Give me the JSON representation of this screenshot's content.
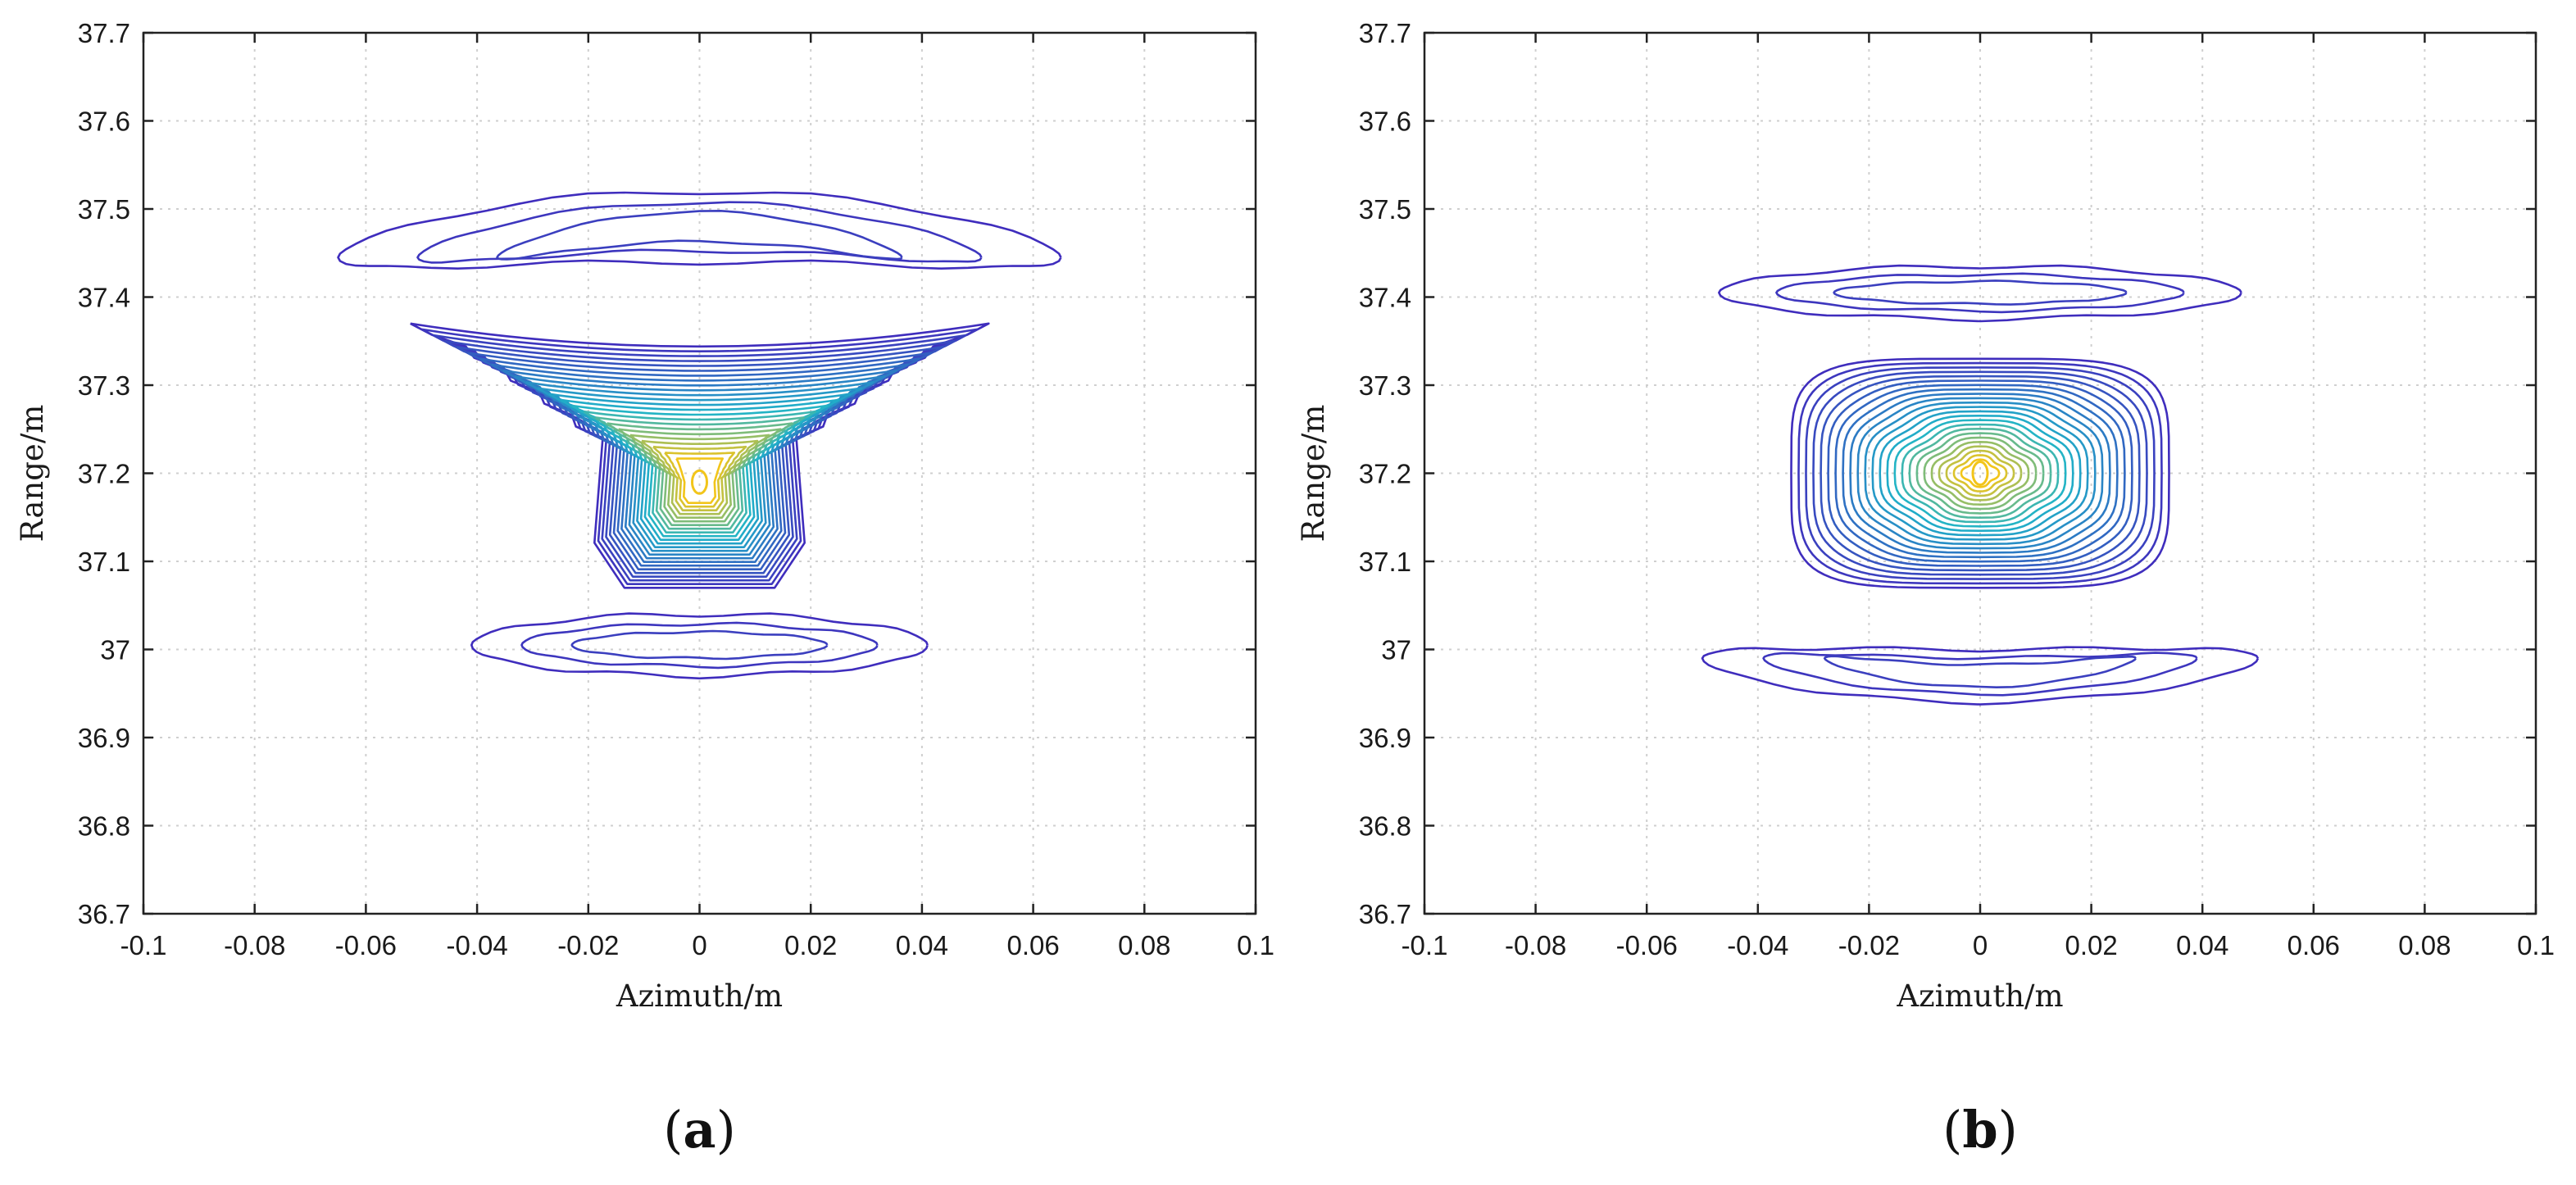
{
  "colors": {
    "low": "#3f2dbd",
    "mid": "#1fb4c9",
    "high": "#f2c51a",
    "axis": "#222222",
    "grid": "#cfcfcf"
  },
  "chart_data": [
    {
      "type": "contour",
      "panel_label": "(a)",
      "xlabel": "Azimuth/m",
      "ylabel": "Range/m",
      "xlim": [
        -0.1,
        0.1
      ],
      "ylim": [
        36.7,
        37.7
      ],
      "xticks": [
        "-0.1",
        "-0.08",
        "-0.06",
        "-0.04",
        "-0.02",
        "0",
        "0.02",
        "0.04",
        "0.06",
        "0.08",
        "0.1"
      ],
      "yticks": [
        "36.7",
        "36.8",
        "36.9",
        "37",
        "37.1",
        "37.2",
        "37.3",
        "37.4",
        "37.5",
        "37.6",
        "37.7"
      ],
      "grid": true,
      "peak": {
        "x": 0.0,
        "y": 37.19
      },
      "groups": [
        {
          "kind": "bowtie",
          "cx": 0.0,
          "cy": 37.19,
          "levels": 24,
          "top_y": 37.37,
          "top_half_width": 0.052,
          "neck_half_width": 0.018,
          "bottom_y": 37.07,
          "scallop": true
        },
        {
          "kind": "band",
          "cx": 0.0,
          "cy": 37.445,
          "half_width": 0.065,
          "half_height": 0.04,
          "levels": 3,
          "curve": 0.035
        },
        {
          "kind": "band",
          "cx": 0.0,
          "cy": 37.005,
          "half_width": 0.041,
          "half_height": 0.035,
          "levels": 3,
          "curve": 0.0
        }
      ]
    },
    {
      "type": "contour",
      "panel_label": "(b)",
      "xlabel": "Azimuth/m",
      "ylabel": "Range/m",
      "xlim": [
        -0.1,
        0.1
      ],
      "ylim": [
        36.7,
        37.7
      ],
      "xticks": [
        "-0.1",
        "-0.08",
        "-0.06",
        "-0.04",
        "-0.02",
        "0",
        "0.02",
        "0.04",
        "0.06",
        "0.08",
        "0.1"
      ],
      "yticks": [
        "36.7",
        "36.8",
        "36.9",
        "37",
        "37.1",
        "37.2",
        "37.3",
        "37.4",
        "37.5",
        "37.6",
        "37.7"
      ],
      "grid": true,
      "peak": {
        "x": 0.0,
        "y": 37.2
      },
      "groups": [
        {
          "kind": "rect",
          "cx": 0.0,
          "cy": 37.2,
          "half_width": 0.034,
          "half_height": 0.13,
          "levels": 24
        },
        {
          "kind": "band",
          "cx": 0.0,
          "cy": 37.405,
          "half_width": 0.047,
          "half_height": 0.03,
          "levels": 3,
          "curve": 0.0
        },
        {
          "kind": "band",
          "cx": 0.0,
          "cy": 36.99,
          "half_width": 0.05,
          "half_height": 0.03,
          "levels": 3,
          "curve": -0.02
        }
      ]
    }
  ]
}
